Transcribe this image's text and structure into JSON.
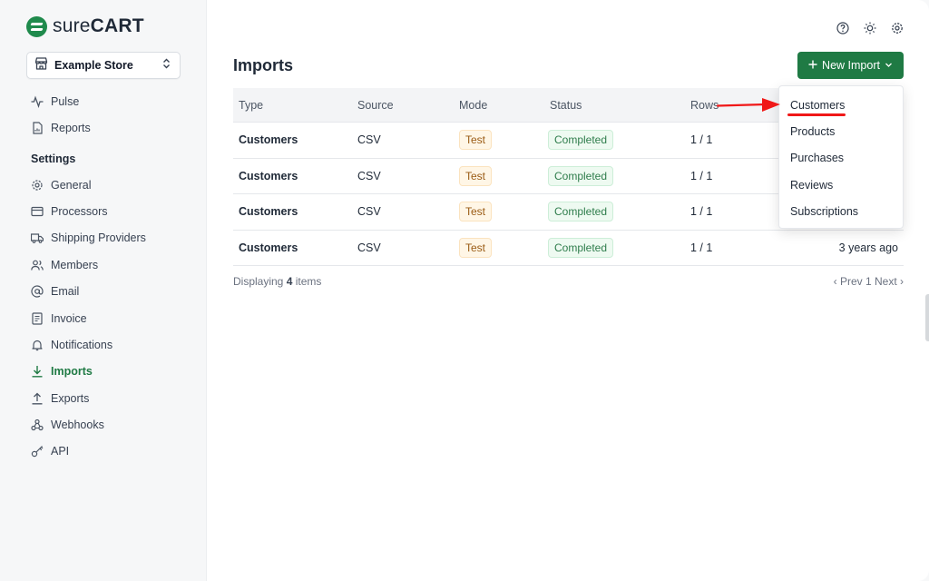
{
  "brand": {
    "name_light": "sure",
    "name_bold": "CART",
    "color": "#1f8a4c"
  },
  "store": {
    "label": "Example Store"
  },
  "nav": {
    "pulse": "Pulse",
    "reports": "Reports",
    "settings_heading": "Settings",
    "items": [
      {
        "label": "General",
        "icon": "gear-icon"
      },
      {
        "label": "Processors",
        "icon": "credit-card-icon"
      },
      {
        "label": "Shipping Providers",
        "icon": "truck-icon"
      },
      {
        "label": "Members",
        "icon": "users-icon"
      },
      {
        "label": "Email",
        "icon": "at-sign-icon"
      },
      {
        "label": "Invoice",
        "icon": "document-icon"
      },
      {
        "label": "Notifications",
        "icon": "bell-icon"
      },
      {
        "label": "Imports",
        "icon": "download-icon",
        "active": true
      },
      {
        "label": "Exports",
        "icon": "upload-icon"
      },
      {
        "label": "Webhooks",
        "icon": "webhook-icon"
      },
      {
        "label": "API",
        "icon": "key-icon"
      }
    ]
  },
  "header": {
    "title": "Imports",
    "new_import_label": "New Import"
  },
  "table": {
    "columns": {
      "type": "Type",
      "source": "Source",
      "mode": "Mode",
      "status": "Status",
      "rows": "Rows"
    },
    "rows": [
      {
        "type": "Customers",
        "source": "CSV",
        "mode": "Test",
        "status": "Completed",
        "rows": "1 / 1",
        "time": ""
      },
      {
        "type": "Customers",
        "source": "CSV",
        "mode": "Test",
        "status": "Completed",
        "rows": "1 / 1",
        "time": ""
      },
      {
        "type": "Customers",
        "source": "CSV",
        "mode": "Test",
        "status": "Completed",
        "rows": "1 / 1",
        "time": ""
      },
      {
        "type": "Customers",
        "source": "CSV",
        "mode": "Test",
        "status": "Completed",
        "rows": "1 / 1",
        "time": "3 years ago"
      }
    ]
  },
  "footer": {
    "displaying": "Displaying",
    "count": "4",
    "items": "items",
    "pager": "‹ Prev  1  Next ›"
  },
  "dropdown": {
    "items": [
      "Customers",
      "Products",
      "Purchases",
      "Reviews",
      "Subscriptions"
    ]
  },
  "colors": {
    "accent": "#1f7a44",
    "annotation": "#f01818"
  }
}
